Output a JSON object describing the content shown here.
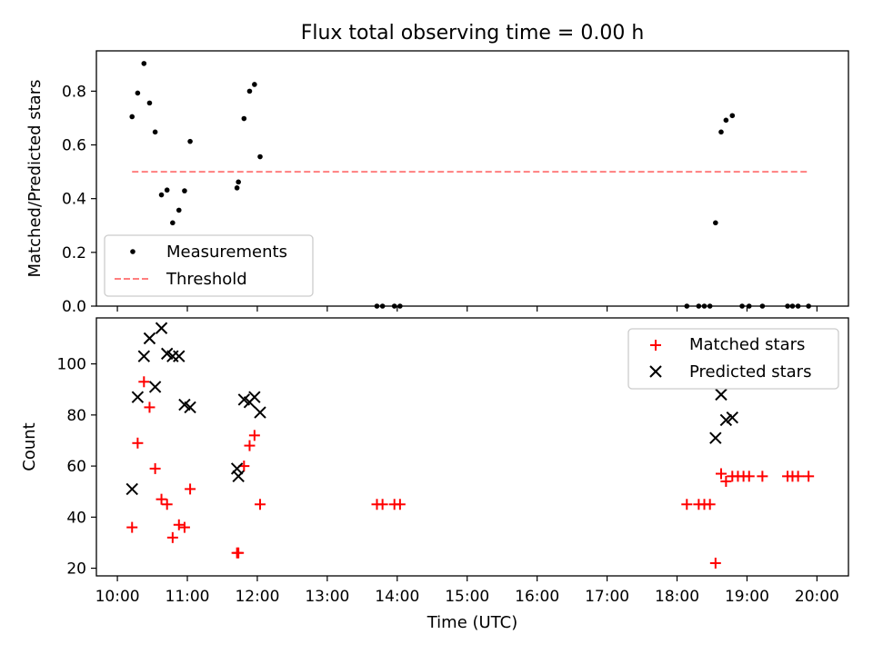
{
  "figure": {
    "title": "Flux total observing time = 0.00 h"
  },
  "x_axis": {
    "label": "Time (UTC)",
    "range_hours": [
      9.7,
      20.45
    ],
    "ticks": [
      {
        "value": 10,
        "label": "10:00"
      },
      {
        "value": 11,
        "label": "11:00"
      },
      {
        "value": 12,
        "label": "12:00"
      },
      {
        "value": 13,
        "label": "13:00"
      },
      {
        "value": 14,
        "label": "14:00"
      },
      {
        "value": 15,
        "label": "15:00"
      },
      {
        "value": 16,
        "label": "16:00"
      },
      {
        "value": 17,
        "label": "17:00"
      },
      {
        "value": 18,
        "label": "18:00"
      },
      {
        "value": 19,
        "label": "19:00"
      },
      {
        "value": 20,
        "label": "20:00"
      }
    ]
  },
  "colors": {
    "measurements": "#000000",
    "threshold": "#ff7f7f",
    "matched": "#ff0000",
    "predicted": "#000000"
  },
  "chart_data": [
    {
      "type": "scatter",
      "title": "Flux total observing time = 0.00 h",
      "xlabel": "Time (UTC)",
      "ylabel": "Matched/Predicted stars",
      "ylim": [
        0,
        0.95
      ],
      "yticks": [
        {
          "value": 0.0,
          "label": "0.0"
        },
        {
          "value": 0.2,
          "label": "0.2"
        },
        {
          "value": 0.4,
          "label": "0.4"
        },
        {
          "value": 0.6,
          "label": "0.6"
        },
        {
          "value": 0.8,
          "label": "0.8"
        }
      ],
      "legend_position": "bottom-left",
      "series": [
        {
          "name": "Measurements",
          "marker": "dot",
          "x": [
            10.21,
            10.29,
            10.38,
            10.46,
            10.54,
            10.63,
            10.71,
            10.79,
            10.88,
            10.96,
            11.04,
            11.71,
            11.73,
            11.81,
            11.89,
            11.96,
            12.04,
            13.71,
            13.79,
            13.96,
            14.04,
            18.14,
            18.31,
            18.39,
            18.47,
            18.55,
            18.63,
            18.7,
            18.79,
            18.93,
            19.03,
            19.22,
            19.58,
            19.65,
            19.73,
            19.88
          ],
          "y": [
            0.705,
            0.793,
            0.903,
            0.756,
            0.648,
            0.414,
            0.432,
            0.31,
            0.357,
            0.429,
            0.613,
            0.44,
            0.462,
            0.698,
            0.8,
            0.825,
            0.556,
            0,
            0,
            0,
            0,
            0,
            0,
            0,
            0,
            0.31,
            0.648,
            0.692,
            0.709,
            0,
            0,
            0,
            0,
            0,
            0,
            0
          ]
        },
        {
          "name": "Threshold",
          "type": "line",
          "style": "dashed",
          "x": [
            10.21,
            19.88
          ],
          "y": [
            0.5,
            0.5
          ]
        }
      ]
    },
    {
      "type": "scatter",
      "xlabel": "Time (UTC)",
      "ylabel": "Count",
      "ylim": [
        17,
        118
      ],
      "yticks": [
        {
          "value": 20,
          "label": "20"
        },
        {
          "value": 40,
          "label": "40"
        },
        {
          "value": 60,
          "label": "60"
        },
        {
          "value": 80,
          "label": "80"
        },
        {
          "value": 100,
          "label": "100"
        }
      ],
      "legend_position": "top-right",
      "series": [
        {
          "name": "Matched stars",
          "marker": "plus",
          "x": [
            10.21,
            10.29,
            10.38,
            10.46,
            10.54,
            10.63,
            10.71,
            10.79,
            10.88,
            10.96,
            11.04,
            11.71,
            11.73,
            11.81,
            11.89,
            11.96,
            12.04,
            13.71,
            13.79,
            13.96,
            14.04,
            18.14,
            18.31,
            18.39,
            18.47,
            18.55,
            18.63,
            18.7,
            18.79,
            18.87,
            18.95,
            19.03,
            19.22,
            19.58,
            19.65,
            19.73,
            19.88
          ],
          "y": [
            36,
            69,
            93,
            83,
            59,
            47,
            45,
            32,
            37,
            36,
            51,
            26,
            26,
            60,
            68,
            72,
            45,
            45,
            45,
            45,
            45,
            45,
            45,
            45,
            45,
            22,
            57,
            54,
            56,
            56,
            56,
            56,
            56,
            56,
            56,
            56,
            56
          ]
        },
        {
          "name": "Predicted stars",
          "marker": "x",
          "x": [
            10.21,
            10.29,
            10.38,
            10.46,
            10.54,
            10.63,
            10.71,
            10.79,
            10.88,
            10.96,
            11.04,
            11.71,
            11.73,
            11.81,
            11.89,
            11.96,
            12.04,
            18.55,
            18.63,
            18.7,
            18.79
          ],
          "y": [
            51,
            87,
            103,
            110,
            91,
            114,
            104,
            103,
            103,
            84,
            83,
            59,
            56,
            86,
            85,
            87,
            81,
            71,
            88,
            78,
            79
          ]
        }
      ]
    }
  ]
}
